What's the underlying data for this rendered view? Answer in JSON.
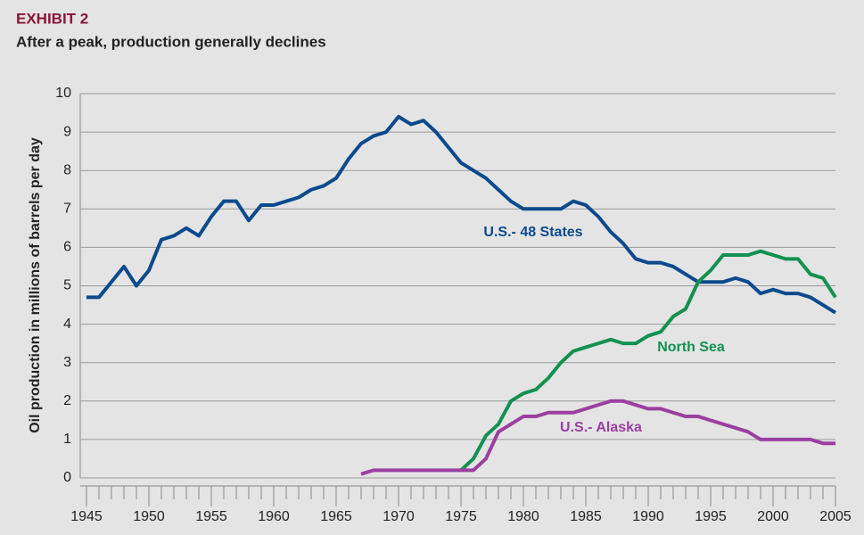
{
  "chart_data": {
    "type": "line",
    "label": "EXHIBIT 2",
    "title": "After a peak, production generally declines",
    "y_label": "Oil production in millions of barrels per day",
    "x": [
      1945,
      1946,
      1947,
      1948,
      1949,
      1950,
      1951,
      1952,
      1953,
      1954,
      1955,
      1956,
      1957,
      1958,
      1959,
      1960,
      1961,
      1962,
      1963,
      1964,
      1965,
      1966,
      1967,
      1968,
      1969,
      1970,
      1971,
      1972,
      1973,
      1974,
      1975,
      1976,
      1977,
      1978,
      1979,
      1980,
      1981,
      1982,
      1983,
      1984,
      1985,
      1986,
      1987,
      1988,
      1989,
      1990,
      1991,
      1992,
      1993,
      1994,
      1995,
      1996,
      1997,
      1998,
      1999,
      2000,
      2001,
      2002,
      2003,
      2004,
      2005
    ],
    "series": [
      {
        "name": "U.S.- 48 States",
        "color": "#0b4a8d",
        "values": [
          4.7,
          4.7,
          5.1,
          5.5,
          5.0,
          5.4,
          6.2,
          6.3,
          6.5,
          6.3,
          6.8,
          7.2,
          7.2,
          6.7,
          7.1,
          7.1,
          7.2,
          7.3,
          7.5,
          7.6,
          7.8,
          8.3,
          8.7,
          8.9,
          9.0,
          9.4,
          9.2,
          9.3,
          9.0,
          8.6,
          8.2,
          8.0,
          7.8,
          7.5,
          7.2,
          7.0,
          7.0,
          7.0,
          7.0,
          7.2,
          7.1,
          6.8,
          6.4,
          6.1,
          5.7,
          5.6,
          5.6,
          5.5,
          5.3,
          5.1,
          5.1,
          5.1,
          5.2,
          5.1,
          4.8,
          4.9,
          4.8,
          4.8,
          4.7,
          4.5,
          4.3
        ]
      },
      {
        "name": "North Sea",
        "color": "#139150",
        "values": [
          null,
          null,
          null,
          null,
          null,
          null,
          null,
          null,
          null,
          null,
          null,
          null,
          null,
          null,
          null,
          null,
          null,
          null,
          null,
          null,
          null,
          null,
          null,
          null,
          null,
          null,
          null,
          null,
          null,
          null,
          0.2,
          0.5,
          1.1,
          1.4,
          2.0,
          2.2,
          2.3,
          2.6,
          3.0,
          3.3,
          3.4,
          3.5,
          3.6,
          3.5,
          3.5,
          3.7,
          3.8,
          4.2,
          4.4,
          5.1,
          5.4,
          5.8,
          5.8,
          5.8,
          5.9,
          5.8,
          5.7,
          5.7,
          5.3,
          5.2,
          4.7
        ]
      },
      {
        "name": "U.S.- Alaska",
        "color": "#9b3fa1",
        "values": [
          null,
          null,
          null,
          null,
          null,
          null,
          null,
          null,
          null,
          null,
          null,
          null,
          null,
          null,
          null,
          null,
          null,
          null,
          null,
          null,
          null,
          null,
          0.1,
          0.2,
          0.2,
          0.2,
          0.2,
          0.2,
          0.2,
          0.2,
          0.2,
          0.2,
          0.5,
          1.2,
          1.4,
          1.6,
          1.6,
          1.7,
          1.7,
          1.7,
          1.8,
          1.9,
          2.0,
          2.0,
          1.9,
          1.8,
          1.8,
          1.7,
          1.6,
          1.6,
          1.5,
          1.4,
          1.3,
          1.2,
          1.0,
          1.0,
          1.0,
          1.0,
          1.0,
          0.9,
          0.9
        ]
      }
    ],
    "xlim": [
      1945,
      2005
    ],
    "xticks": [
      1945,
      1950,
      1955,
      1960,
      1965,
      1970,
      1975,
      1980,
      1985,
      1990,
      1995,
      2000,
      2005
    ],
    "ylim": [
      0,
      10
    ],
    "yticks": [
      0,
      1,
      2,
      3,
      4,
      5,
      6,
      7,
      8,
      9,
      10
    ],
    "grid": true
  }
}
